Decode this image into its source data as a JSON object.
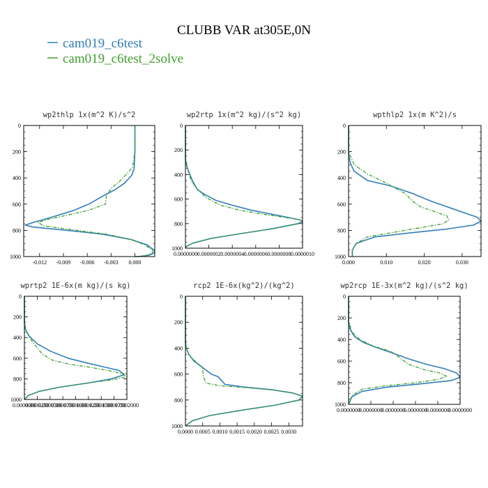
{
  "figure": {
    "title": "CLUBB VAR at305E,0N",
    "legend": [
      {
        "label": "cam019_c6test",
        "color": "#2f7fb8",
        "style": "solid"
      },
      {
        "label": "cam019_c6test_2solve",
        "color": "#3f9f2f",
        "style": "dash-dot"
      }
    ]
  },
  "chart_data": [
    {
      "type": "line",
      "title": "wp2thlp  1x(m^2 K)/s^2",
      "xlim": [
        -0.014,
        0.0025
      ],
      "ylim": [
        1000,
        0
      ],
      "xticks": [
        -0.012,
        -0.009,
        -0.006,
        -0.003,
        0.0
      ],
      "xtick_labels": [
        "-0.012",
        "-0.009",
        "-0.006",
        "-0.003",
        "0.000"
      ],
      "yticks": [
        0,
        200,
        400,
        600,
        800,
        1000
      ],
      "ytick_labels": [
        "0",
        "200",
        "400",
        "600",
        "800",
        "1000"
      ],
      "series": [
        {
          "name": "cam019_c6test",
          "x": [
            0.0,
            0.0,
            -0.0001,
            -0.0004,
            -0.0013,
            -0.0025,
            -0.0038,
            -0.0058,
            -0.0078,
            -0.0105,
            -0.0128,
            -0.0138,
            -0.0128,
            -0.0085,
            -0.004,
            -0.0005,
            0.0015,
            0.0024,
            0.0025,
            0.0018,
            0.0005,
            0.0
          ],
          "y": [
            0,
            200,
            330,
            380,
            440,
            490,
            530,
            600,
            650,
            700,
            740,
            760,
            775,
            800,
            830,
            870,
            910,
            950,
            970,
            990,
            1000,
            1000
          ]
        },
        {
          "name": "cam019_c6test_2solve",
          "x": [
            0.0,
            0.0,
            -0.0003,
            -0.0012,
            -0.002,
            -0.003,
            -0.0036,
            -0.0037,
            -0.006,
            -0.009,
            -0.0112,
            -0.0122,
            -0.0115,
            -0.008,
            -0.0035,
            -0.0005,
            0.0012,
            0.0022,
            0.0022,
            0.0015,
            0.0004,
            0.0
          ],
          "y": [
            0,
            200,
            320,
            380,
            430,
            480,
            540,
            600,
            650,
            690,
            720,
            740,
            765,
            795,
            830,
            870,
            910,
            950,
            970,
            990,
            1000,
            1000
          ]
        }
      ]
    },
    {
      "type": "line",
      "title": "wp2rtp  1x(m^2 kg)/(s^2 kg)",
      "xlim": [
        0,
        1e-06
      ],
      "ylim": [
        1000,
        0
      ],
      "xticks": [
        0.0,
        2e-07,
        4e-07,
        6e-07,
        8e-07,
        1e-06
      ],
      "xtick_labels": [
        "0.0000000",
        "0.0000002",
        "0.0000004",
        "0.0000006",
        "0.0000008",
        "0.0000010"
      ],
      "yticks": [
        0,
        200,
        400,
        600,
        800,
        1000
      ],
      "ytick_labels": [
        "0",
        "200",
        "400",
        "600",
        "800",
        "1000"
      ],
      "series": [
        {
          "name": "cam019_c6test",
          "x": [
            0,
            0,
            1e-08,
            3e-08,
            6e-08,
            1e-07,
            1.6e-07,
            2.6e-07,
            4e-07,
            5.6e-07,
            7.2e-07,
            8.8e-07,
            9.8e-07,
            1e-06,
            9.6e-07,
            7.5e-07,
            4.8e-07,
            2.2e-07,
            6e-08,
            1e-08,
            0
          ],
          "y": [
            0,
            280,
            330,
            380,
            450,
            520,
            560,
            610,
            650,
            690,
            720,
            750,
            770,
            785,
            800,
            840,
            880,
            920,
            960,
            985,
            1000
          ]
        },
        {
          "name": "cam019_c6test_2solve",
          "x": [
            0,
            0,
            1e-08,
            2.5e-08,
            5e-08,
            1e-07,
            1.8e-07,
            3e-07,
            4.6e-07,
            6.4e-07,
            8.2e-07,
            9.6e-07,
            1e-06,
            9.7e-07,
            7.6e-07,
            4.8e-07,
            2.2e-07,
            6e-08,
            1e-08,
            0
          ],
          "y": [
            0,
            260,
            310,
            380,
            450,
            520,
            590,
            650,
            690,
            720,
            745,
            765,
            780,
            800,
            840,
            880,
            920,
            960,
            985,
            1000
          ]
        }
      ]
    },
    {
      "type": "line",
      "title": "wpthlp2  1x(m K^2)/s",
      "xlim": [
        0,
        0.035
      ],
      "ylim": [
        1000,
        0
      ],
      "xticks": [
        0.0,
        0.01,
        0.02,
        0.03
      ],
      "xtick_labels": [
        "0.000",
        "0.010",
        "0.020",
        "0.030"
      ],
      "yticks": [
        0,
        200,
        400,
        600,
        800,
        1000
      ],
      "ytick_labels": [
        "0",
        "200",
        "400",
        "600",
        "800",
        "1000"
      ],
      "series": [
        {
          "name": "cam019_c6test",
          "x": [
            0,
            0,
            0.0005,
            0.0015,
            0.005,
            0.011,
            0.017,
            0.022,
            0.027,
            0.031,
            0.034,
            0.035,
            0.033,
            0.026,
            0.016,
            0.007,
            0.002,
            0.001,
            0.001
          ],
          "y": [
            0,
            220,
            290,
            350,
            420,
            460,
            520,
            580,
            630,
            670,
            700,
            730,
            760,
            790,
            820,
            850,
            900,
            950,
            1000
          ]
        },
        {
          "name": "cam019_c6test_2solve",
          "x": [
            0,
            0,
            0.0015,
            0.005,
            0.01,
            0.015,
            0.017,
            0.019,
            0.023,
            0.026,
            0.0265,
            0.025,
            0.019,
            0.011,
            0.005,
            0.002,
            0.001,
            0.001
          ],
          "y": [
            0,
            200,
            300,
            370,
            440,
            520,
            580,
            620,
            660,
            690,
            720,
            750,
            780,
            820,
            850,
            900,
            950,
            1000
          ]
        }
      ]
    },
    {
      "type": "line",
      "title": "wprtp2  1E-6x(m kg)/(s kg)",
      "xlim": [
        0,
        0.0002
      ],
      "ylim": [
        1000,
        0
      ],
      "xticks": [
        0.0,
        2.5e-05,
        5e-05,
        7.5e-05,
        0.0001,
        0.000125,
        0.00015,
        0.000175,
        0.0002
      ],
      "xtick_labels": [
        "0.0000000",
        "0.0000250",
        "0.0000500",
        "0.0000750",
        "0.0001000",
        "0.0001250",
        "0.0001500",
        "0.0001750",
        "0.0002000"
      ],
      "yticks": [
        0,
        200,
        400,
        600,
        800,
        1000
      ],
      "ytick_labels": [
        "0",
        "200",
        "400",
        "600",
        "800",
        "1000"
      ],
      "series": [
        {
          "name": "cam019_c6test",
          "x": [
            0,
            0,
            2e-06,
            1e-05,
            2.5e-05,
            5e-05,
            8.5e-05,
            0.000125,
            0.00016,
            0.000185,
            0.000195,
            0.00017,
            0.000125,
            7e-05,
            3e-05,
            8e-06,
            0
          ],
          "y": [
            0,
            250,
            320,
            390,
            460,
            530,
            600,
            650,
            690,
            720,
            760,
            800,
            840,
            880,
            920,
            960,
            1000
          ]
        },
        {
          "name": "cam019_c6test_2solve",
          "x": [
            0,
            0,
            2e-06,
            1e-05,
            2.2e-05,
            3.5e-05,
            5.5e-05,
            9e-05,
            0.00013,
            0.000165,
            0.00019,
            0.0002,
            0.00017,
            0.000125,
            7e-05,
            3e-05,
            8e-06,
            0
          ],
          "y": [
            0,
            250,
            320,
            400,
            480,
            560,
            620,
            660,
            690,
            720,
            750,
            780,
            810,
            840,
            880,
            920,
            960,
            1000
          ]
        }
      ]
    },
    {
      "type": "line",
      "title": "rcp2  1E-6x(kg^2)/(kg^2)",
      "xlim": [
        0,
        0.0034
      ],
      "ylim": [
        1000,
        0
      ],
      "xticks": [
        0.0,
        0.0005,
        0.001,
        0.0015,
        0.002,
        0.0025,
        0.003
      ],
      "xtick_labels": [
        "0.0000",
        "0.0005",
        "0.0010",
        "0.0015",
        "0.0020",
        "0.0025",
        "0.0030"
      ],
      "yticks": [
        0,
        200,
        400,
        600,
        800,
        1000
      ],
      "ytick_labels": [
        "0",
        "200",
        "400",
        "600",
        "800",
        "1000"
      ],
      "series": [
        {
          "name": "cam019_c6test",
          "x": [
            0,
            0,
            2e-05,
            0.0001,
            0.00025,
            0.0005,
            0.00075,
            0.00095,
            0.00115,
            0.0017,
            0.0025,
            0.0031,
            0.0034,
            0.0033,
            0.0026,
            0.0016,
            0.0007,
            0.0002,
            0
          ],
          "y": [
            0,
            350,
            400,
            450,
            500,
            550,
            600,
            620,
            680,
            700,
            720,
            745,
            770,
            800,
            840,
            880,
            920,
            960,
            1000
          ]
        },
        {
          "name": "cam019_c6test_2solve",
          "x": [
            0,
            0,
            0.0001,
            0.00028,
            0.0005,
            0.00052,
            0.0006,
            0.001,
            0.0018,
            0.0026,
            0.0031,
            0.0034,
            0.0033,
            0.0026,
            0.0016,
            0.0007,
            0.0002,
            0
          ],
          "y": [
            0,
            380,
            450,
            500,
            550,
            620,
            670,
            690,
            705,
            725,
            745,
            770,
            800,
            840,
            880,
            920,
            960,
            1000
          ]
        }
      ]
    },
    {
      "type": "line",
      "title": "wp2rcp  1E-3x(m^2 kg)/(s^2 kg)",
      "xlim": [
        0,
        1e-07
      ],
      "ylim": [
        1000,
        0
      ],
      "xticks": [
        0.0,
        2e-08,
        4e-08,
        6e-08,
        8e-08,
        1e-07
      ],
      "xtick_labels": [
        "0.0000000",
        "0.0000000",
        "0.0000000",
        "0.0000000",
        "0.0000000",
        "0.0000000"
      ],
      "yticks": [
        0,
        200,
        400,
        600,
        800,
        1000
      ],
      "ytick_labels": [
        "0",
        "200",
        "400",
        "600",
        "800",
        "1000"
      ],
      "series": [
        {
          "name": "cam019_c6test",
          "x": [
            0,
            0,
            2e-09,
            6e-09,
            1.4e-08,
            2.4e-08,
            3.8e-08,
            5.4e-08,
            7e-08,
            8.6e-08,
            9.7e-08,
            1e-07,
            9.2e-08,
            6.5e-08,
            3.5e-08,
            1.2e-08,
            3e-09,
            0
          ],
          "y": [
            0,
            250,
            320,
            380,
            430,
            470,
            520,
            580,
            630,
            670,
            710,
            750,
            780,
            810,
            840,
            880,
            930,
            1000
          ]
        },
        {
          "name": "cam019_c6test_2solve",
          "x": [
            0,
            0,
            3e-09,
            1e-08,
            2.2e-08,
            3.8e-08,
            4.6e-08,
            5.4e-08,
            6.8e-08,
            8.2e-08,
            8.8e-08,
            8e-08,
            6e-08,
            3.2e-08,
            1.2e-08,
            3e-09,
            0
          ],
          "y": [
            0,
            230,
            330,
            400,
            460,
            510,
            570,
            630,
            680,
            710,
            740,
            770,
            800,
            830,
            860,
            920,
            1000
          ]
        }
      ]
    }
  ]
}
